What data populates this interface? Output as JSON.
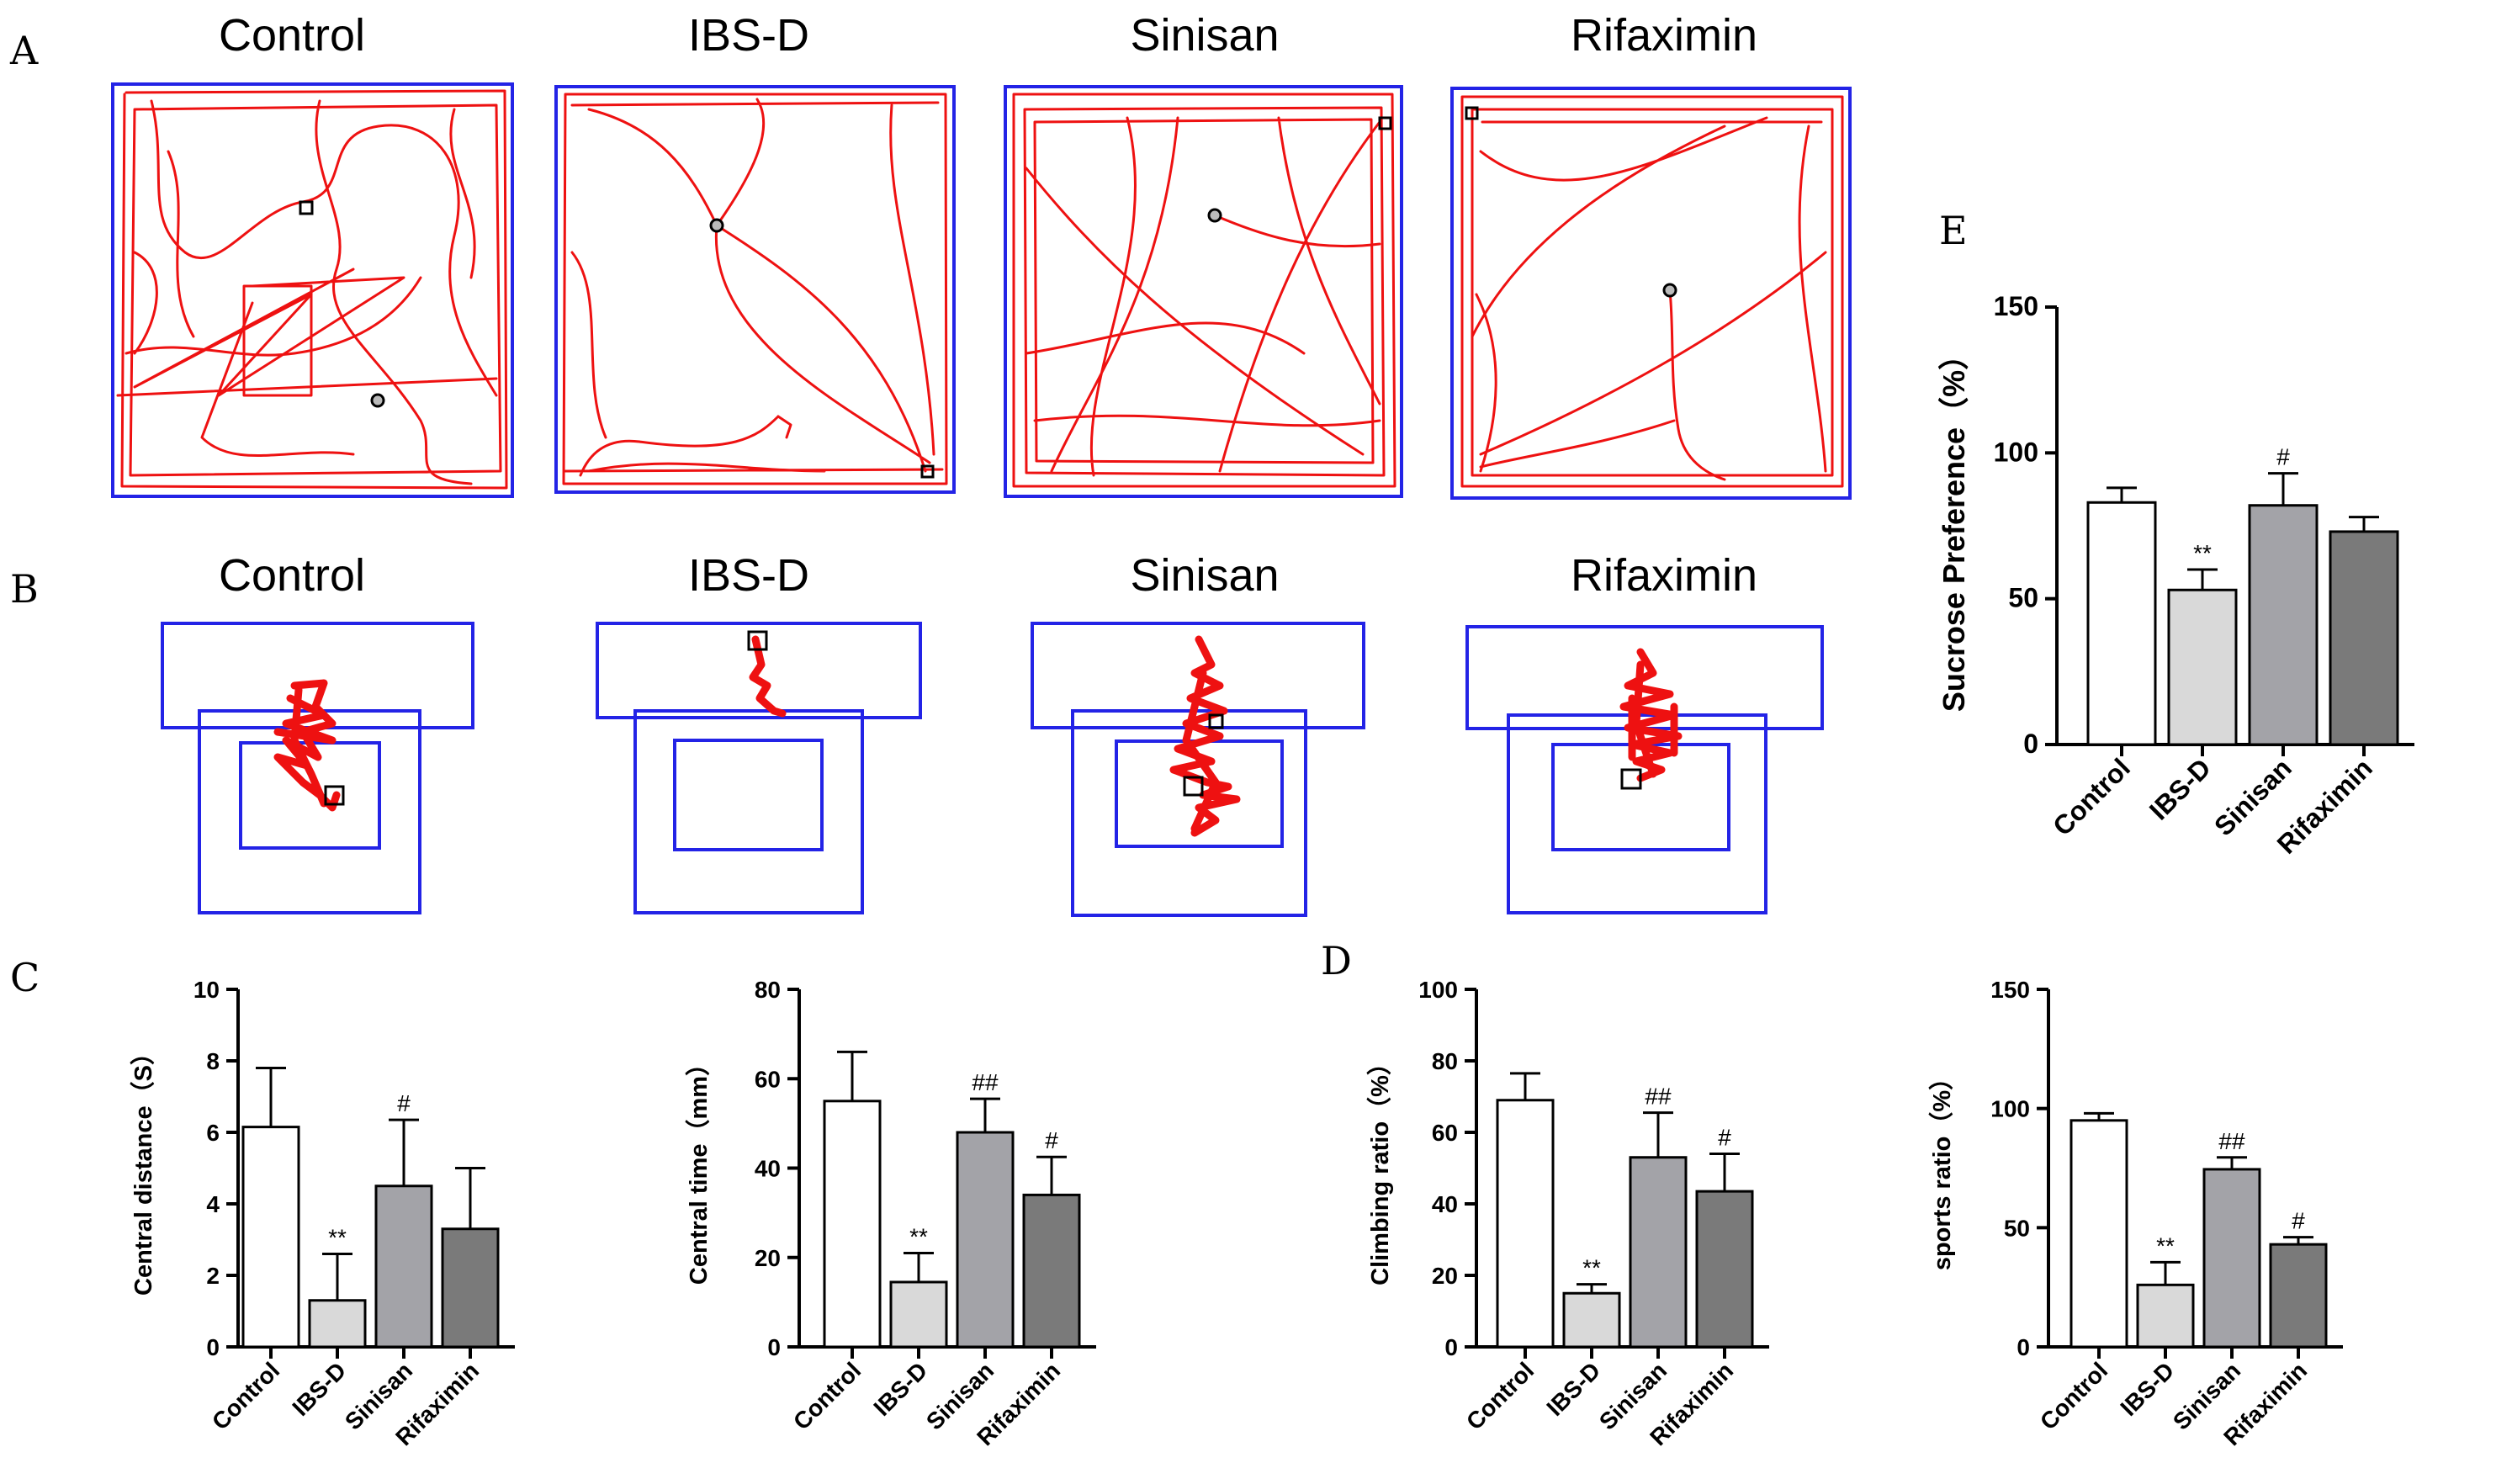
{
  "panels": {
    "A": "A",
    "B": "B",
    "C": "C",
    "D": "D",
    "E": "E"
  },
  "groups": [
    "Control",
    "IBS-D",
    "Sinisan",
    "Rifaximin"
  ],
  "colors": {
    "arena": "#2323e6",
    "track": "#ee1111",
    "bars": [
      "#ffffff",
      "#d9d9d9",
      "#a3a3a8",
      "#7a7a7a"
    ]
  },
  "chart_data": [
    {
      "id": "central-distance",
      "panel": "C",
      "type": "bar",
      "title": "",
      "ylabel": "Central distance（S）",
      "xlabel": "",
      "categories": [
        "Control",
        "IBS-D",
        "Sinisan",
        "Rifaximin"
      ],
      "values": [
        6.15,
        1.3,
        4.5,
        3.3
      ],
      "errors": [
        1.65,
        1.3,
        1.85,
        1.7
      ],
      "annotations": [
        "",
        "**",
        "#",
        ""
      ],
      "ylim": [
        0,
        10
      ],
      "yticks": [
        0,
        2,
        4,
        6,
        8,
        10
      ]
    },
    {
      "id": "central-time",
      "panel": "C",
      "type": "bar",
      "title": "",
      "ylabel": "Central time（mm）",
      "xlabel": "",
      "categories": [
        "Control",
        "IBS-D",
        "Sinisan",
        "Rifaximin"
      ],
      "values": [
        55,
        14.5,
        48,
        34
      ],
      "errors": [
        11,
        6.5,
        7.5,
        8.5
      ],
      "annotations": [
        "",
        "**",
        "##",
        "#"
      ],
      "ylim": [
        0,
        80
      ],
      "yticks": [
        0,
        20,
        40,
        60,
        80
      ]
    },
    {
      "id": "climbing-ratio",
      "panel": "D",
      "type": "bar",
      "title": "",
      "ylabel": "Climbing ratio（%）",
      "xlabel": "",
      "categories": [
        "Control",
        "IBS-D",
        "Sinisan",
        "Rifaximin"
      ],
      "values": [
        69,
        15,
        53,
        43.5
      ],
      "errors": [
        7.5,
        2.5,
        12.5,
        10.5
      ],
      "annotations": [
        "",
        "**",
        "##",
        "#"
      ],
      "ylim": [
        0,
        100
      ],
      "yticks": [
        0,
        20,
        40,
        60,
        80,
        100
      ]
    },
    {
      "id": "sports-ratio",
      "panel": "D",
      "type": "bar",
      "title": "",
      "ylabel": "sports ratio（%）",
      "xlabel": "",
      "categories": [
        "Control",
        "IBS-D",
        "Sinisan",
        "Rifaximin"
      ],
      "values": [
        95,
        26,
        74.5,
        43
      ],
      "errors": [
        3,
        9.5,
        5,
        3
      ],
      "annotations": [
        "",
        "**",
        "##",
        "#"
      ],
      "ylim": [
        0,
        150
      ],
      "yticks": [
        0,
        50,
        100,
        150
      ]
    },
    {
      "id": "sucrose-preference",
      "panel": "E",
      "type": "bar",
      "title": "",
      "ylabel": "Sucrose Preference（%）",
      "xlabel": "",
      "categories": [
        "Control",
        "IBS-D",
        "Sinisan",
        "Rifaximin"
      ],
      "values": [
        83,
        53,
        82,
        73
      ],
      "errors": [
        5,
        7,
        11,
        5
      ],
      "annotations": [
        "",
        "**",
        "#",
        ""
      ],
      "ylim": [
        0,
        150
      ],
      "yticks": [
        0,
        50,
        100,
        150
      ]
    }
  ]
}
